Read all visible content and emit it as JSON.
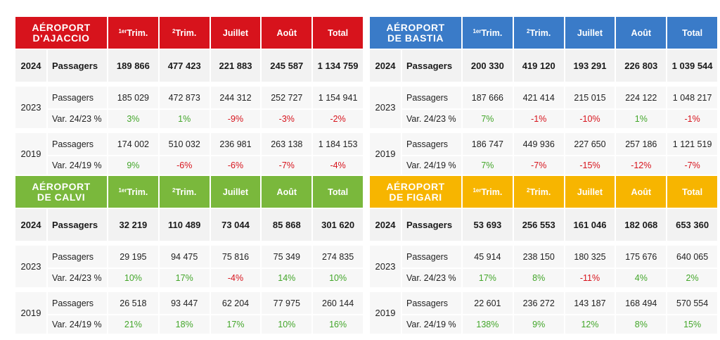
{
  "headers": {
    "q1": "Trim.",
    "q1_sup": "1er",
    "q2": "Trim.",
    "q2_sup": "2",
    "jul": "Juillet",
    "aug": "Août",
    "total": "Total"
  },
  "labels": {
    "y2024": "2024",
    "y2023": "2023",
    "y2019": "2019",
    "pass": "Passagers",
    "var2423": "Var. 24/23 %",
    "var2419": "Var. 24/19 %"
  },
  "colors": {
    "ajaccio": "#d7131c",
    "bastia": "#3a7bc8",
    "calvi": "#7ab83c",
    "figari": "#f7b500",
    "positive": "#43a62a",
    "negative": "#d7131c"
  },
  "airports": [
    {
      "name_l1": "AÉROPORT",
      "name_l2": "D'AJACCIO",
      "p2024": [
        "189 866",
        "477 423",
        "221 883",
        "245 587",
        "1 134 759"
      ],
      "p2023": [
        "185 029",
        "472 873",
        "244 312",
        "252 727",
        "1 154 941"
      ],
      "v2423": [
        "3%",
        "1%",
        "-9%",
        "-3%",
        "-2%"
      ],
      "p2019": [
        "174 002",
        "510 032",
        "236 981",
        "263 138",
        "1 184 153"
      ],
      "v2419": [
        "9%",
        "-6%",
        "-6%",
        "-7%",
        "-4%"
      ]
    },
    {
      "name_l1": "AÉROPORT",
      "name_l2": "DE BASTIA",
      "p2024": [
        "200 330",
        "419 120",
        "193 291",
        "226 803",
        "1 039 544"
      ],
      "p2023": [
        "187 666",
        "421 414",
        "215 015",
        "224 122",
        "1 048 217"
      ],
      "v2423": [
        "7%",
        "-1%",
        "-10%",
        "1%",
        "-1%"
      ],
      "p2019": [
        "186 747",
        "449 936",
        "227 650",
        "257 186",
        "1 121 519"
      ],
      "v2419": [
        "7%",
        "-7%",
        "-15%",
        "-12%",
        "-7%"
      ]
    },
    {
      "name_l1": "AÉROPORT",
      "name_l2": "DE CALVI",
      "p2024": [
        "32 219",
        "110 489",
        "73 044",
        "85 868",
        "301 620"
      ],
      "p2023": [
        "29 195",
        "94 475",
        "75 816",
        "75 349",
        "274 835"
      ],
      "v2423": [
        "10%",
        "17%",
        "-4%",
        "14%",
        "10%"
      ],
      "p2019": [
        "26 518",
        "93 447",
        "62 204",
        "77 975",
        "260 144"
      ],
      "v2419": [
        "21%",
        "18%",
        "17%",
        "10%",
        "16%"
      ]
    },
    {
      "name_l1": "AÉROPORT",
      "name_l2": "DE FIGARI",
      "p2024": [
        "53 693",
        "256 553",
        "161 046",
        "182 068",
        "653 360"
      ],
      "p2023": [
        "45 914",
        "238 150",
        "180 325",
        "175 676",
        "640 065"
      ],
      "v2423": [
        "17%",
        "8%",
        "-11%",
        "4%",
        "2%"
      ],
      "p2019": [
        "22 601",
        "236 272",
        "143 187",
        "168 494",
        "570 554"
      ],
      "v2419": [
        "138%",
        "9%",
        "12%",
        "8%",
        "15%"
      ]
    }
  ]
}
